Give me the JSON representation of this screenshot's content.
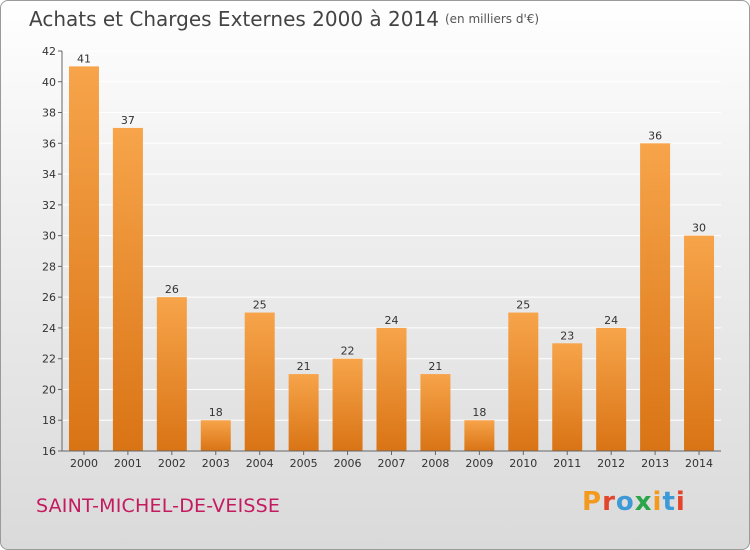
{
  "header": {
    "title": "Achats et Charges Externes 2000 à 2014",
    "unit": "(en milliers d'€)"
  },
  "footer": {
    "commune": "SAINT-MICHEL-DE-VEISSE",
    "logo": "Proxiti",
    "logo_colors": [
      "#f39a1e",
      "#e2452b",
      "#3d9ad6",
      "#2aa54a",
      "#f39a1e",
      "#3d9ad6",
      "#e2452b"
    ]
  },
  "colors": {
    "bar_light": "#f7a44a",
    "bar_dark": "#d97415",
    "axis": "#666666",
    "grid": "#ffffff"
  },
  "chart_data": {
    "type": "bar",
    "title": "Achats et Charges Externes 2000 à 2014",
    "categories": [
      "2000",
      "2001",
      "2002",
      "2003",
      "2004",
      "2005",
      "2006",
      "2007",
      "2008",
      "2009",
      "2010",
      "2011",
      "2012",
      "2013",
      "2014"
    ],
    "values": [
      41,
      37,
      26,
      18,
      25,
      21,
      22,
      24,
      21,
      18,
      25,
      23,
      24,
      36,
      30
    ],
    "ylim": [
      16,
      42
    ],
    "yticks": [
      16,
      18,
      20,
      22,
      24,
      26,
      28,
      30,
      32,
      34,
      36,
      38,
      40,
      42
    ],
    "grid": true,
    "xlabel": "",
    "ylabel": ""
  }
}
